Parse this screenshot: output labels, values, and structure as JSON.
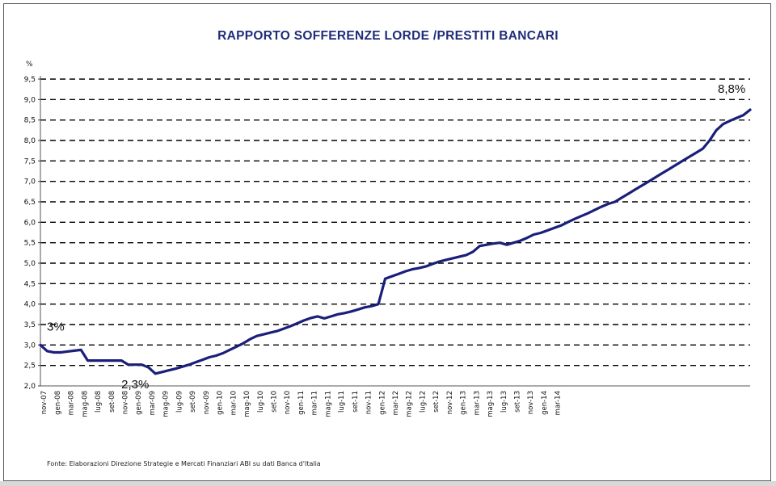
{
  "title": "RAPPORTO SOFFERENZE LORDE /PRESTITI BANCARI",
  "source": "Fonte: Elaborazioni Direzione Strategie e Mercati Finanziari ABI su dati Banca d'Italia",
  "colors": {
    "line": "#1a1f7a",
    "title": "#1f2c7a",
    "grid": "#000000"
  },
  "chart_data": {
    "type": "line",
    "title": "RAPPORTO SOFFERENZE LORDE /PRESTITI BANCARI",
    "ylabel": "%",
    "xlabel": "",
    "ylim": [
      2.0,
      9.5
    ],
    "yticks": [
      "2,0",
      "2,5",
      "3,0",
      "3,5",
      "4,0",
      "4,5",
      "5,0",
      "5,5",
      "6,0",
      "6,5",
      "7,0",
      "7,5",
      "8,0",
      "8,5",
      "9,0",
      "9,5"
    ],
    "ytick_values": [
      2.0,
      2.5,
      3.0,
      3.5,
      4.0,
      4.5,
      5.0,
      5.5,
      6.0,
      6.5,
      7.0,
      7.5,
      8.0,
      8.5,
      9.0,
      9.5
    ],
    "xtick_labels": [
      "nov-07",
      "gen-08",
      "mar-08",
      "mag-08",
      "lug-08",
      "set-08",
      "nov-08",
      "gen-09",
      "mar-09",
      "mag-09",
      "lug-09",
      "set-09",
      "nov-09",
      "gen-10",
      "mar-10",
      "mag-10",
      "lug-10",
      "set-10",
      "nov-10",
      "gen-11",
      "mar-11",
      "mag-11",
      "lug-11",
      "set-11",
      "nov-11",
      "gen-12",
      "mar-12",
      "mag-12",
      "lug-12",
      "set-12",
      "nov-12",
      "gen-13",
      "mar-13",
      "mag-13",
      "lug-13",
      "set-13",
      "nov-13",
      "gen-14",
      "mar-14"
    ],
    "grid": "horizontal dashed",
    "legend": "none",
    "series": [
      {
        "values": [
          3.0,
          2.85,
          2.82,
          2.82,
          2.84,
          2.86,
          2.88,
          2.62,
          2.62,
          2.62,
          2.62,
          2.62,
          2.62,
          2.52,
          2.52,
          2.52,
          2.45,
          2.3,
          2.34,
          2.38,
          2.42,
          2.47,
          2.52,
          2.58,
          2.64,
          2.7,
          2.74,
          2.8,
          2.88,
          2.96,
          3.04,
          3.14,
          3.22,
          3.26,
          3.3,
          3.34,
          3.4,
          3.46,
          3.53,
          3.6,
          3.66,
          3.7,
          3.65,
          3.7,
          3.75,
          3.78,
          3.82,
          3.87,
          3.92,
          3.95,
          4.0,
          4.62,
          4.68,
          4.74,
          4.8,
          4.85,
          4.88,
          4.92,
          4.98,
          5.04,
          5.08,
          5.12,
          5.16,
          5.2,
          5.28,
          5.42,
          5.45,
          5.48,
          5.5,
          5.45,
          5.5,
          5.55,
          5.62,
          5.7,
          5.74,
          5.8,
          5.86,
          5.92,
          6.0,
          6.08,
          6.15,
          6.22,
          6.3,
          6.38,
          6.45,
          6.5,
          6.6,
          6.7,
          6.8,
          6.9,
          7.0,
          7.1,
          7.2,
          7.3,
          7.4,
          7.5,
          7.6,
          7.7,
          7.8,
          8.0,
          8.25,
          8.4,
          8.48,
          8.55,
          8.62,
          8.75
        ]
      }
    ],
    "annotations": [
      {
        "text": "3%",
        "index": 0,
        "value": 3.0,
        "pos": "above"
      },
      {
        "text": "2,3%",
        "index": 17,
        "value": 2.3,
        "pos": "below"
      },
      {
        "text": "8,8%",
        "index": 105,
        "value": 8.75,
        "pos": "above-left"
      }
    ]
  }
}
